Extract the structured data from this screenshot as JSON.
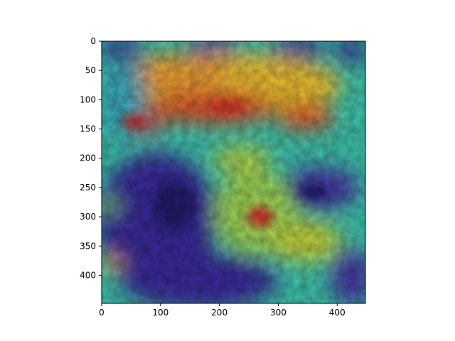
{
  "image": {
    "description_free": true,
    "x_range": [
      0,
      448
    ],
    "y_range": [
      0,
      448
    ],
    "x_ticks": [
      0,
      100,
      200,
      300,
      400
    ],
    "y_ticks": [
      0,
      50,
      100,
      150,
      200,
      250,
      300,
      350,
      400
    ],
    "colormap": "jet",
    "colors": {
      "cold": "#2a1f8f",
      "cool": "#3fc7b0",
      "warm": "#f2c233",
      "hot": "#d8302a"
    }
  }
}
